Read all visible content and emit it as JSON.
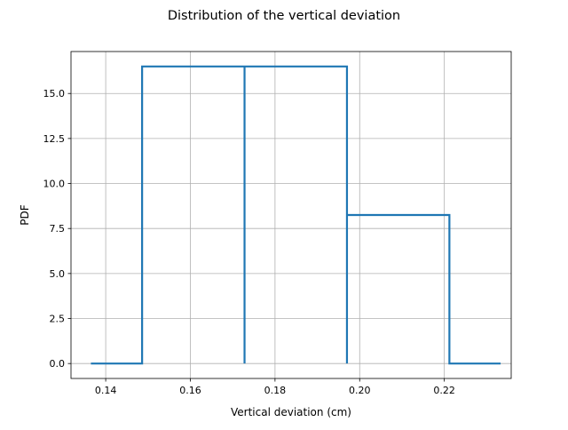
{
  "chart_data": {
    "type": "line",
    "title": "Distribution of the vertical deviation",
    "xlabel": "Vertical deviation (cm)",
    "ylabel": "PDF",
    "xlim": [
      0.1318,
      0.2358
    ],
    "ylim": [
      -0.83,
      17.33
    ],
    "grid": true,
    "xticks": [
      0.14,
      0.16,
      0.18,
      0.2,
      0.22
    ],
    "xtick_labels": [
      "0.14",
      "0.16",
      "0.18",
      "0.20",
      "0.22"
    ],
    "yticks": [
      0.0,
      2.5,
      5.0,
      7.5,
      10.0,
      12.5,
      15.0
    ],
    "ytick_labels": [
      "0.0",
      "2.5",
      "5.0",
      "7.5",
      "10.0",
      "12.5",
      "15.0"
    ],
    "line_color": "#1f77b4",
    "series": [
      {
        "x": [
          0.1365,
          0.1486,
          0.1486,
          0.1728,
          0.1728,
          0.1728,
          0.197,
          0.197,
          0.197,
          0.2212,
          0.2212,
          0.2333
        ],
        "y": [
          0,
          0,
          16.5,
          16.5,
          0,
          16.5,
          16.5,
          0,
          8.25,
          8.25,
          0,
          0
        ]
      }
    ]
  }
}
